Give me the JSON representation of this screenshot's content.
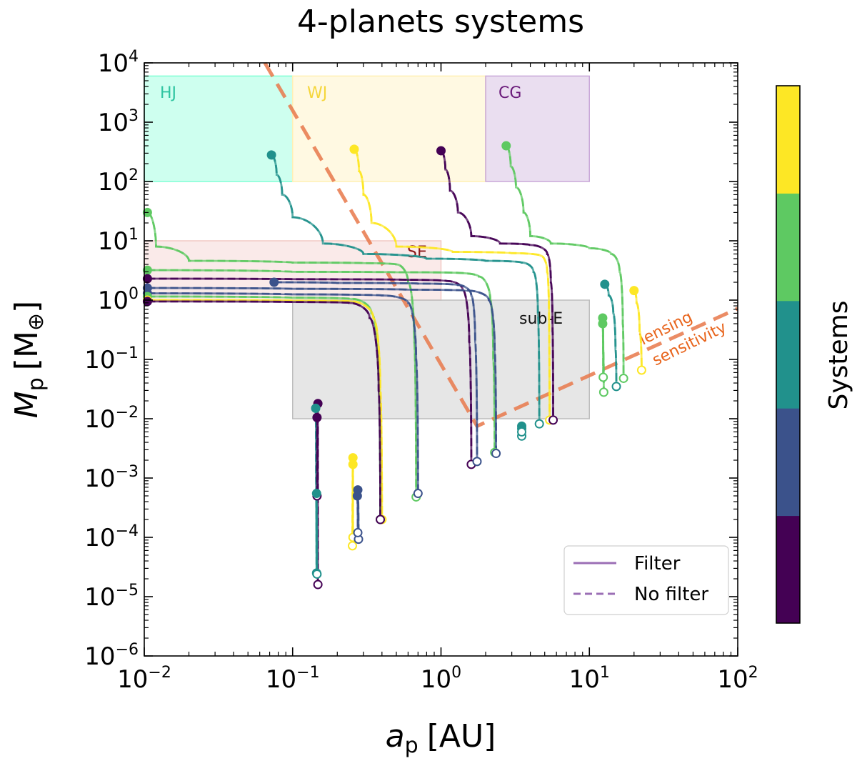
{
  "chart_data": {
    "type": "scatter",
    "title": "4-planets systems",
    "xlabel": {
      "main": "a",
      "sub": "p",
      "unit": "[AU]"
    },
    "ylabel": {
      "main": "M",
      "sub": "p",
      "unit_open": "[M",
      "unit_sub": "⊕",
      "unit_close": "]"
    },
    "xscale": "log",
    "yscale": "log",
    "xlim": [
      0.01,
      100
    ],
    "ylim": [
      1e-06,
      10000
    ],
    "x_ticks": [
      {
        "base": "10",
        "exp": "−2",
        "value": 0.01
      },
      {
        "base": "10",
        "exp": "−1",
        "value": 0.1
      },
      {
        "base": "10",
        "exp": "0",
        "value": 1
      },
      {
        "base": "10",
        "exp": "1",
        "value": 10
      },
      {
        "base": "10",
        "exp": "2",
        "value": 100
      }
    ],
    "y_ticks": [
      {
        "base": "10",
        "exp": "−6",
        "value": 1e-06
      },
      {
        "base": "10",
        "exp": "−5",
        "value": 1e-05
      },
      {
        "base": "10",
        "exp": "−4",
        "value": 0.0001
      },
      {
        "base": "10",
        "exp": "−3",
        "value": 0.001
      },
      {
        "base": "10",
        "exp": "−2",
        "value": 0.01
      },
      {
        "base": "10",
        "exp": "−1",
        "value": 0.1
      },
      {
        "base": "10",
        "exp": "0",
        "value": 1
      },
      {
        "base": "10",
        "exp": "1",
        "value": 10
      },
      {
        "base": "10",
        "exp": "2",
        "value": 100
      },
      {
        "base": "10",
        "exp": "3",
        "value": 1000
      },
      {
        "base": "10",
        "exp": "4",
        "value": 10000
      }
    ],
    "regions": [
      {
        "label": "HJ",
        "x": [
          0.01,
          0.1
        ],
        "y": [
          100,
          6000
        ],
        "fill": "#7fffd4",
        "text_color": "#2ec4a0"
      },
      {
        "label": "WJ",
        "x": [
          0.1,
          2
        ],
        "y": [
          100,
          6000
        ],
        "fill": "#fff0b3",
        "text_color": "#f5d63a"
      },
      {
        "label": "CG",
        "x": [
          2,
          10
        ],
        "y": [
          100,
          6000
        ],
        "fill": "#c9a7d8",
        "text_color": "#6a1a7a"
      },
      {
        "label": "SE",
        "x": [
          0.01,
          1
        ],
        "y": [
          1,
          10
        ],
        "fill": "#f2c9c4",
        "text_color": "#8b1a1a"
      },
      {
        "label": "sub-E",
        "x": [
          0.1,
          10
        ],
        "y": [
          0.01,
          1
        ],
        "fill": "#bdbdbd",
        "text_color": "#111111"
      }
    ],
    "lensing": {
      "label_line1": "lensing",
      "label_line2": "sensitivity",
      "color": "#e8784a",
      "label_color": "#e8641c",
      "points": [
        [
          0.065,
          10000
        ],
        [
          1.75,
          0.0075
        ],
        [
          100,
          0.72
        ]
      ]
    },
    "colorbar": {
      "label": "Systems",
      "colors": [
        "#440154",
        "#3b528b",
        "#21918c",
        "#5ec962",
        "#fde725"
      ]
    },
    "legend": {
      "filter": "Filter",
      "no_filter": "No filter",
      "color": "#9b6fb5",
      "position": "lower right"
    },
    "series": [
      {
        "system": 2,
        "color": "#21918c",
        "start": [
          0.072,
          280
        ],
        "end": [
          4.6,
          0.0082
        ],
        "path": [
          [
            0.072,
            280
          ],
          [
            0.078,
            130
          ],
          [
            0.085,
            60
          ],
          [
            0.1,
            25
          ],
          [
            0.16,
            9
          ],
          [
            0.3,
            6
          ],
          [
            0.8,
            5
          ],
          [
            2,
            4.6
          ],
          [
            3.5,
            4.3
          ],
          [
            4.2,
            3
          ],
          [
            4.5,
            0.6
          ],
          [
            4.6,
            0.0082
          ]
        ]
      },
      {
        "system": 4,
        "color": "#fde725",
        "start": [
          0.26,
          350
        ],
        "end": [
          5.4,
          0.0095
        ],
        "path": [
          [
            0.26,
            350
          ],
          [
            0.28,
            150
          ],
          [
            0.3,
            60
          ],
          [
            0.34,
            20
          ],
          [
            0.5,
            8
          ],
          [
            1.2,
            6.5
          ],
          [
            3,
            6.2
          ],
          [
            4.7,
            5.6
          ],
          [
            5.2,
            3
          ],
          [
            5.35,
            0.4
          ],
          [
            5.4,
            0.0095
          ]
        ]
      },
      {
        "system": 0,
        "color": "#440154",
        "start": [
          1.0,
          330
        ],
        "end": [
          5.7,
          0.0095
        ],
        "path": [
          [
            1.0,
            330
          ],
          [
            1.07,
            160
          ],
          [
            1.15,
            70
          ],
          [
            1.3,
            30
          ],
          [
            1.6,
            12
          ],
          [
            2.5,
            9
          ],
          [
            4.0,
            8.5
          ],
          [
            5.2,
            6
          ],
          [
            5.5,
            2
          ],
          [
            5.65,
            0.3
          ],
          [
            5.7,
            0.0095
          ]
        ]
      },
      {
        "system": 3,
        "color": "#5ec962",
        "start": [
          2.75,
          400
        ],
        "end": [
          17,
          0.048
        ],
        "path": [
          [
            2.75,
            400
          ],
          [
            2.95,
            180
          ],
          [
            3.2,
            80
          ],
          [
            3.6,
            30
          ],
          [
            4.0,
            12
          ],
          [
            5.5,
            9
          ],
          [
            10,
            7.5
          ],
          [
            14,
            6
          ],
          [
            16,
            3
          ],
          [
            16.8,
            0.4
          ],
          [
            17,
            0.048
          ]
        ]
      },
      {
        "system": 3,
        "color": "#5ec962",
        "start": [
          0.0105,
          30
        ],
        "end": [
          0.68,
          0.00048
        ],
        "path": [
          [
            0.0105,
            30
          ],
          [
            0.012,
            8
          ],
          [
            0.02,
            4.6
          ],
          [
            0.1,
            4.3
          ],
          [
            0.3,
            4.2
          ],
          [
            0.5,
            4.0
          ],
          [
            0.6,
            2
          ],
          [
            0.66,
            0.2
          ],
          [
            0.68,
            0.00048
          ]
        ]
      },
      {
        "system": 3,
        "color": "#5ec962",
        "start": [
          0.0105,
          3.2
        ],
        "end": [
          2.3,
          0.0027
        ],
        "path": [
          [
            0.0105,
            3.2
          ],
          [
            0.1,
            3.0
          ],
          [
            0.5,
            2.95
          ],
          [
            1.2,
            2.9
          ],
          [
            1.8,
            2.5
          ],
          [
            2.15,
            1
          ],
          [
            2.25,
            0.1
          ],
          [
            2.3,
            0.0027
          ]
        ]
      },
      {
        "system": 0,
        "color": "#440154",
        "start": [
          0.0105,
          2.3
        ],
        "end": [
          1.6,
          0.0017
        ],
        "path": [
          [
            0.0105,
            2.3
          ],
          [
            0.1,
            2.25
          ],
          [
            0.6,
            2.2
          ],
          [
            1.1,
            2.1
          ],
          [
            1.4,
            1.5
          ],
          [
            1.55,
            0.2
          ],
          [
            1.6,
            0.0017
          ]
        ]
      },
      {
        "system": 1,
        "color": "#3b528b",
        "start": [
          0.075,
          2.0
        ],
        "end": [
          1.75,
          0.0019
        ],
        "path": [
          [
            0.075,
            2.0
          ],
          [
            0.2,
            1.95
          ],
          [
            0.7,
            1.9
          ],
          [
            1.3,
            1.8
          ],
          [
            1.6,
            1.2
          ],
          [
            1.7,
            0.2
          ],
          [
            1.75,
            0.0019
          ]
        ]
      },
      {
        "system": 1,
        "color": "#3b528b",
        "start": [
          0.0105,
          1.6
        ],
        "end": [
          2.35,
          0.0026
        ],
        "path": [
          [
            0.0105,
            1.6
          ],
          [
            0.1,
            1.55
          ],
          [
            0.6,
            1.5
          ],
          [
            1.5,
            1.45
          ],
          [
            2.1,
            1.0
          ],
          [
            2.3,
            0.15
          ],
          [
            2.35,
            0.0026
          ]
        ]
      },
      {
        "system": 1,
        "color": "#3b528b",
        "start": [
          0.0105,
          1.3
        ],
        "end": [
          0.7,
          0.00055
        ],
        "path": [
          [
            0.0105,
            1.3
          ],
          [
            0.1,
            1.25
          ],
          [
            0.4,
            1.2
          ],
          [
            0.6,
            0.9
          ],
          [
            0.68,
            0.1
          ],
          [
            0.7,
            0.00055
          ]
        ]
      },
      {
        "system": 3,
        "color": "#5ec962",
        "start": [
          0.0105,
          1.15
        ],
        "end": [
          0.39,
          0.0002
        ],
        "path": [
          [
            0.0105,
            1.15
          ],
          [
            0.1,
            1.1
          ],
          [
            0.25,
            1.05
          ],
          [
            0.34,
            0.6
          ],
          [
            0.38,
            0.05
          ],
          [
            0.39,
            0.0002
          ]
        ]
      },
      {
        "system": 4,
        "color": "#fde725",
        "start": [
          0.0105,
          1.0
        ],
        "end": [
          0.4,
          0.0002
        ],
        "path": [
          [
            0.0105,
            1.0
          ],
          [
            0.1,
            0.98
          ],
          [
            0.25,
            0.95
          ],
          [
            0.35,
            0.5
          ],
          [
            0.39,
            0.03
          ],
          [
            0.4,
            0.0002
          ]
        ]
      },
      {
        "system": 0,
        "color": "#440154",
        "start": [
          0.0105,
          0.95
        ],
        "end": [
          0.39,
          0.0002
        ],
        "path": [
          [
            0.0105,
            0.95
          ],
          [
            0.1,
            0.93
          ],
          [
            0.24,
            0.9
          ],
          [
            0.33,
            0.5
          ],
          [
            0.38,
            0.03
          ],
          [
            0.39,
            0.0002
          ]
        ]
      },
      {
        "system": 0,
        "color": "#440154",
        "start": [
          0.148,
          0.018
        ],
        "end": [
          0.148,
          1.6e-05
        ],
        "path": [
          [
            0.148,
            0.018
          ],
          [
            0.148,
            0.001
          ],
          [
            0.148,
            1.6e-05
          ]
        ]
      },
      {
        "system": 2,
        "color": "#21918c",
        "start": [
          0.143,
          0.015
        ],
        "end": [
          0.145,
          2.5e-05
        ],
        "path": [
          [
            0.143,
            0.015
          ],
          [
            0.144,
            0.001
          ],
          [
            0.145,
            2.5e-05
          ]
        ]
      },
      {
        "system": 0,
        "color": "#440154",
        "start": [
          0.146,
          0.0105
        ],
        "end": [
          0.146,
          0.0005
        ],
        "path": [
          [
            0.146,
            0.0105
          ],
          [
            0.146,
            0.0005
          ]
        ]
      },
      {
        "system": 2,
        "color": "#21918c",
        "start": [
          0.145,
          0.00055
        ],
        "end": [
          0.146,
          2.4e-05
        ],
        "path": [
          [
            0.145,
            0.00055
          ],
          [
            0.146,
            2.4e-05
          ]
        ]
      },
      {
        "system": 4,
        "color": "#fde725",
        "start": [
          0.255,
          0.0022
        ],
        "end": [
          0.253,
          7.2e-05
        ],
        "path": [
          [
            0.255,
            0.0022
          ],
          [
            0.253,
            7.2e-05
          ]
        ]
      },
      {
        "system": 4,
        "color": "#fde725",
        "start": [
          0.255,
          0.0017
        ],
        "end": [
          0.255,
          0.0001
        ],
        "path": [
          [
            0.255,
            0.0017
          ],
          [
            0.255,
            0.0001
          ]
        ]
      },
      {
        "system": 1,
        "color": "#3b528b",
        "start": [
          0.275,
          0.00063
        ],
        "end": [
          0.278,
          9.3e-05
        ],
        "path": [
          [
            0.275,
            0.00063
          ],
          [
            0.278,
            9.3e-05
          ]
        ]
      },
      {
        "system": 1,
        "color": "#3b528b",
        "start": [
          0.273,
          0.0005
        ],
        "end": [
          0.275,
          0.00012
        ],
        "path": [
          [
            0.273,
            0.0005
          ],
          [
            0.275,
            0.00012
          ]
        ]
      },
      {
        "system": 2,
        "color": "#21918c",
        "start": [
          3.5,
          0.0075
        ],
        "end": [
          3.5,
          0.0051
        ],
        "path": [
          [
            3.5,
            0.0075
          ],
          [
            3.5,
            0.0051
          ]
        ]
      },
      {
        "system": 2,
        "color": "#21918c",
        "start": [
          3.5,
          0.0068
        ],
        "end": [
          3.5,
          0.006
        ],
        "path": [
          [
            3.5,
            0.0068
          ],
          [
            3.5,
            0.006
          ]
        ]
      },
      {
        "system": 2,
        "color": "#21918c",
        "start": [
          12.7,
          1.85
        ],
        "end": [
          15.2,
          0.035
        ],
        "path": [
          [
            12.7,
            1.85
          ],
          [
            13.5,
            1.2
          ],
          [
            14.5,
            0.6
          ],
          [
            15.0,
            0.15
          ],
          [
            15.2,
            0.035
          ]
        ]
      },
      {
        "system": 3,
        "color": "#5ec962",
        "start": [
          12.3,
          0.5
        ],
        "end": [
          12.5,
          0.028
        ],
        "path": [
          [
            12.3,
            0.5
          ],
          [
            12.4,
            0.15
          ],
          [
            12.5,
            0.028
          ]
        ]
      },
      {
        "system": 3,
        "color": "#5ec962",
        "start": [
          12.3,
          0.4
        ],
        "end": [
          12.4,
          0.05
        ],
        "path": [
          [
            12.3,
            0.4
          ],
          [
            12.4,
            0.05
          ]
        ]
      },
      {
        "system": 4,
        "color": "#fde725",
        "start": [
          20,
          1.45
        ],
        "end": [
          22.5,
          0.066
        ],
        "path": [
          [
            20,
            1.45
          ],
          [
            20.8,
            0.9
          ],
          [
            21.8,
            0.3
          ],
          [
            22.5,
            0.066
          ]
        ]
      }
    ]
  }
}
